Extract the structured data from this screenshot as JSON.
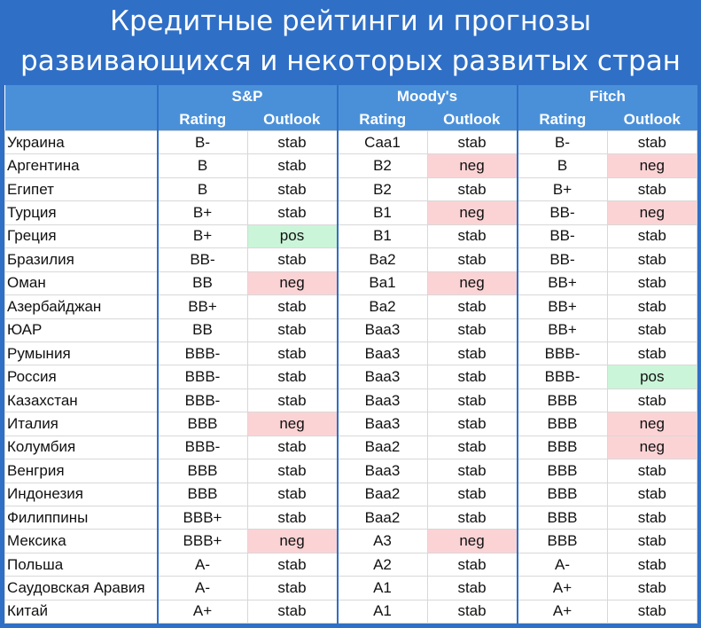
{
  "title": {
    "line1": "Кредитные рейтинги и прогнозы",
    "line2": "развивающихся и некоторых развитых стран"
  },
  "agencies": [
    "S&P",
    "Moody's",
    "Fitch"
  ],
  "subheaders": {
    "rating": "Rating",
    "outlook": "Outlook"
  },
  "colors": {
    "background": "#2f6fc6",
    "header": "#4a90d9",
    "neg": "#fbd3d5",
    "pos": "#cbf5d9"
  },
  "rows": [
    {
      "country": "Украина",
      "sp": [
        "B-",
        "stab"
      ],
      "moodys": [
        "Caa1",
        "stab"
      ],
      "fitch": [
        "B-",
        "stab"
      ]
    },
    {
      "country": "Аргентина",
      "sp": [
        "B",
        "stab"
      ],
      "moodys": [
        "B2",
        "neg"
      ],
      "fitch": [
        "B",
        "neg"
      ]
    },
    {
      "country": "Египет",
      "sp": [
        "B",
        "stab"
      ],
      "moodys": [
        "B2",
        "stab"
      ],
      "fitch": [
        "B+",
        "stab"
      ]
    },
    {
      "country": "Турция",
      "sp": [
        "B+",
        "stab"
      ],
      "moodys": [
        "B1",
        "neg"
      ],
      "fitch": [
        "BB-",
        "neg"
      ]
    },
    {
      "country": "Греция",
      "sp": [
        "B+",
        "pos"
      ],
      "moodys": [
        "B1",
        "stab"
      ],
      "fitch": [
        "BB-",
        "stab"
      ]
    },
    {
      "country": "Бразилия",
      "sp": [
        "BB-",
        "stab"
      ],
      "moodys": [
        "Ba2",
        "stab"
      ],
      "fitch": [
        "BB-",
        "stab"
      ]
    },
    {
      "country": "Оман",
      "sp": [
        "BB",
        "neg"
      ],
      "moodys": [
        "Ba1",
        "neg"
      ],
      "fitch": [
        "BB+",
        "stab"
      ]
    },
    {
      "country": "Азербайджан",
      "sp": [
        "BB+",
        "stab"
      ],
      "moodys": [
        "Ba2",
        "stab"
      ],
      "fitch": [
        "BB+",
        "stab"
      ]
    },
    {
      "country": "ЮАР",
      "sp": [
        "BB",
        "stab"
      ],
      "moodys": [
        "Baa3",
        "stab"
      ],
      "fitch": [
        "BB+",
        "stab"
      ]
    },
    {
      "country": "Румыния",
      "sp": [
        "BBB-",
        "stab"
      ],
      "moodys": [
        "Baa3",
        "stab"
      ],
      "fitch": [
        "BBB-",
        "stab"
      ]
    },
    {
      "country": "Россия",
      "sp": [
        "BBB-",
        "stab"
      ],
      "moodys": [
        "Baa3",
        "stab"
      ],
      "fitch": [
        "BBB-",
        "pos"
      ]
    },
    {
      "country": "Казахстан",
      "sp": [
        "BBB-",
        "stab"
      ],
      "moodys": [
        "Baa3",
        "stab"
      ],
      "fitch": [
        "BBB",
        "stab"
      ]
    },
    {
      "country": "Италия",
      "sp": [
        "BBB",
        "neg"
      ],
      "moodys": [
        "Baa3",
        "stab"
      ],
      "fitch": [
        "BBB",
        "neg"
      ]
    },
    {
      "country": "Колумбия",
      "sp": [
        "BBB-",
        "stab"
      ],
      "moodys": [
        "Baa2",
        "stab"
      ],
      "fitch": [
        "BBB",
        "neg"
      ]
    },
    {
      "country": "Венгрия",
      "sp": [
        "BBB",
        "stab"
      ],
      "moodys": [
        "Baa3",
        "stab"
      ],
      "fitch": [
        "BBB",
        "stab"
      ]
    },
    {
      "country": "Индонезия",
      "sp": [
        "BBB",
        "stab"
      ],
      "moodys": [
        "Baa2",
        "stab"
      ],
      "fitch": [
        "BBB",
        "stab"
      ]
    },
    {
      "country": "Филиппины",
      "sp": [
        "BBB+",
        "stab"
      ],
      "moodys": [
        "Baa2",
        "stab"
      ],
      "fitch": [
        "BBB",
        "stab"
      ]
    },
    {
      "country": "Мексика",
      "sp": [
        "BBB+",
        "neg"
      ],
      "moodys": [
        "A3",
        "neg"
      ],
      "fitch": [
        "BBB",
        "stab"
      ]
    },
    {
      "country": "Польша",
      "sp": [
        "A-",
        "stab"
      ],
      "moodys": [
        "A2",
        "stab"
      ],
      "fitch": [
        "A-",
        "stab"
      ]
    },
    {
      "country": "Саудовская Аравия",
      "sp": [
        "A-",
        "stab"
      ],
      "moodys": [
        "A1",
        "stab"
      ],
      "fitch": [
        "A+",
        "stab"
      ]
    },
    {
      "country": "Китай",
      "sp": [
        "A+",
        "stab"
      ],
      "moodys": [
        "A1",
        "stab"
      ],
      "fitch": [
        "A+",
        "stab"
      ]
    }
  ]
}
